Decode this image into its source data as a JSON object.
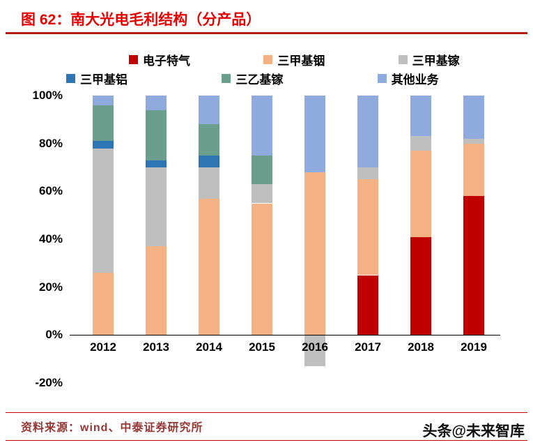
{
  "header": {
    "title": "图 62：南大光电毛利结构（分产品）"
  },
  "footer": {
    "source": "资料来源：wind、中泰证券研究所",
    "watermark": "头条@未来智库"
  },
  "colors": {
    "title_red": "#e60000",
    "rule_dark_red": "#b01d10",
    "footer_line_red": "#c00000",
    "source_text": "#953735"
  },
  "chart_data": {
    "type": "bar",
    "stacked_percent": true,
    "title": "南大光电毛利结构（分产品）",
    "categories": [
      "2012",
      "2013",
      "2014",
      "2015",
      "2016",
      "2017",
      "2018",
      "2019"
    ],
    "series": [
      {
        "name": "电子特气",
        "color": "#C00000",
        "values": [
          0,
          0,
          0,
          0,
          0,
          25,
          41,
          58
        ]
      },
      {
        "name": "三甲基铟",
        "color": "#F4B183",
        "values": [
          26,
          37,
          57,
          55,
          68,
          40,
          36,
          22
        ]
      },
      {
        "name": "三甲基镓",
        "color": "#BFBFBF",
        "values": [
          52,
          33,
          13,
          8,
          -13,
          5,
          6,
          2
        ]
      },
      {
        "name": "三甲基铝",
        "color": "#2E75B6",
        "values": [
          3,
          3,
          5,
          0,
          0,
          0,
          0,
          0
        ]
      },
      {
        "name": "三乙基镓",
        "color": "#6B9F8D",
        "values": [
          15,
          21,
          13,
          12,
          0,
          0,
          0,
          0
        ]
      },
      {
        "name": "其他业务",
        "color": "#8FAADC",
        "values": [
          4,
          6,
          12,
          25,
          32,
          30,
          17,
          18
        ]
      }
    ],
    "ylim": [
      -20,
      100
    ],
    "ytick_values": [
      100,
      80,
      60,
      40,
      20,
      0,
      -20
    ],
    "ytick_labels": [
      "100%",
      "80%",
      "60%",
      "40%",
      "20%",
      "0%",
      "-20%"
    ],
    "grid": false,
    "legend_position": "top",
    "legend_rows": [
      [
        "电子特气",
        "三甲基铟",
        "三甲基镓"
      ],
      [
        "三甲基铝",
        "三乙基镓",
        "其他业务"
      ]
    ]
  }
}
